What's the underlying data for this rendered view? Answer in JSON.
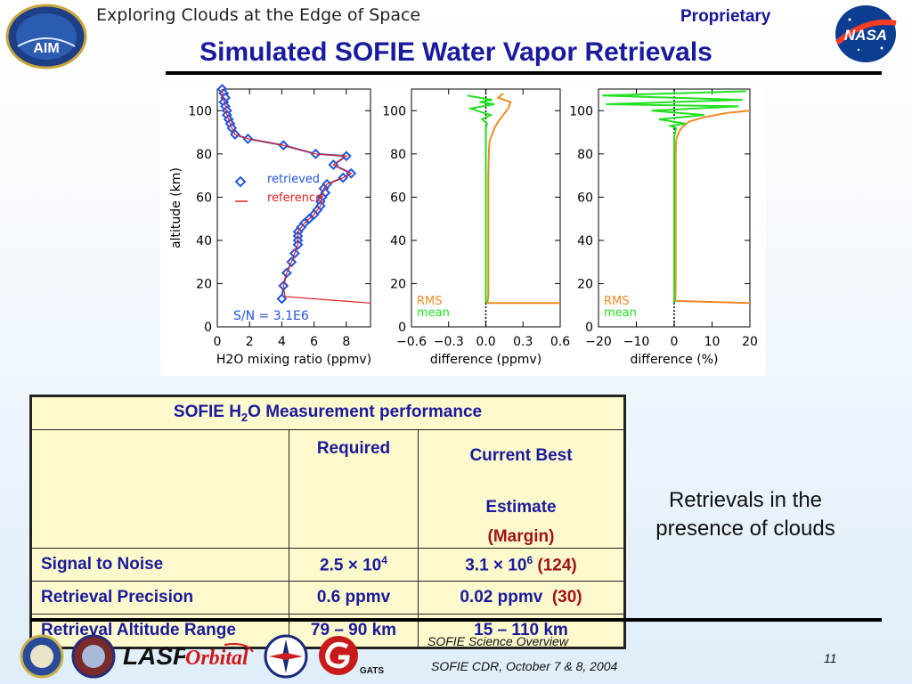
{
  "header": {
    "tagline": "Exploring Clouds at the Edge of Space",
    "proprietary": "Proprietary",
    "aim_logo_text": "AIM",
    "nasa_logo_text": "NASA"
  },
  "title": "Simulated SOFIE Water Vapor Retrievals",
  "chart_data": [
    {
      "type": "line",
      "ylabel": "altitude (km)",
      "xlabel": "H2O mixing ratio (ppmv)",
      "xlim": [
        0,
        9.5
      ],
      "ylim": [
        0,
        110
      ],
      "xticks": [
        "0",
        "2",
        "4",
        "6",
        "8"
      ],
      "yticks": [
        "0",
        "20",
        "40",
        "60",
        "80",
        "100"
      ],
      "legend": "top-left",
      "legend_entries": [
        "retrieved",
        "reference"
      ],
      "annotation": "S/N = 3.1E6",
      "series": [
        {
          "name": "retrieved",
          "marker": "diamond",
          "x": [
            0.3,
            0.4,
            0.5,
            0.4,
            0.5,
            0.6,
            0.6,
            0.7,
            0.8,
            0.9,
            1.1,
            1.9,
            4.1,
            6.1,
            8.0,
            7.2,
            8.3,
            7.8,
            6.8,
            6.6,
            6.7,
            6.5,
            6.4,
            6.4,
            6.2,
            6.0,
            5.7,
            5.4,
            5.2,
            5.0,
            5.0,
            5.0,
            5.0,
            4.8,
            4.6,
            4.3,
            4.1,
            4.0
          ],
          "y": [
            110,
            108,
            106,
            104,
            102,
            100,
            98,
            96,
            94,
            92,
            89,
            87,
            84,
            80,
            79,
            75,
            71,
            69,
            66,
            64,
            62,
            60,
            58,
            56,
            54,
            52,
            50,
            48,
            46,
            44,
            42,
            40,
            38,
            34,
            30,
            25,
            19,
            13
          ]
        },
        {
          "name": "reference",
          "x": [
            0.3,
            0.4,
            0.5,
            0.6,
            0.7,
            0.9,
            1.1,
            1.9,
            4.1,
            6.1,
            8.0,
            7.2,
            8.3,
            7.8,
            6.8,
            6.6,
            6.5,
            6.4,
            6.2,
            6.0,
            5.4,
            5.0,
            5.0,
            4.8,
            4.6,
            4.3,
            4.1,
            4.2,
            9.5
          ],
          "y": [
            110,
            105,
            102,
            98,
            96,
            92,
            89,
            87,
            84,
            80,
            79,
            75,
            71,
            69,
            66,
            64,
            60,
            56,
            54,
            52,
            48,
            44,
            38,
            34,
            30,
            25,
            19,
            14,
            11
          ]
        }
      ]
    },
    {
      "type": "line",
      "xlabel": "difference (ppmv)",
      "xlim": [
        -0.6,
        0.6
      ],
      "ylim": [
        0,
        110
      ],
      "xticks": [
        "−0.6",
        "−0.3",
        "0.0",
        "0.3",
        "0.6"
      ],
      "yticks": [
        "0",
        "20",
        "40",
        "60",
        "80",
        "100"
      ],
      "legend": "bottom-left",
      "legend_entries": [
        "RMS",
        "mean"
      ],
      "series": [
        {
          "name": "RMS",
          "x": [
            0.14,
            0.1,
            0.2,
            0.18,
            0.14,
            0.1,
            0.07,
            0.05,
            0.03,
            0.025,
            0.02,
            0.02,
            0.02,
            0.02,
            0.015,
            0.015,
            0.6
          ],
          "y": [
            108,
            106,
            104,
            101,
            98,
            95,
            92,
            89,
            86,
            82,
            70,
            50,
            30,
            15,
            12,
            11,
            11
          ]
        },
        {
          "name": "mean",
          "x": [
            -0.15,
            0.05,
            -0.05,
            0.07,
            -0.12,
            -0.02,
            0.04,
            -0.03,
            0.01,
            0.0,
            0.0,
            0.0,
            0.0
          ],
          "y": [
            107,
            105,
            104,
            103,
            101,
            99,
            98,
            96,
            94,
            92,
            70,
            30,
            11
          ]
        }
      ]
    },
    {
      "type": "line",
      "xlabel": "difference (%)",
      "xlim": [
        -20,
        20
      ],
      "ylim": [
        0,
        110
      ],
      "xticks": [
        "−20",
        "−10",
        "0",
        "10",
        "20"
      ],
      "yticks": [
        "0",
        "20",
        "40",
        "60",
        "80",
        "100"
      ],
      "legend": "bottom-left",
      "legend_entries": [
        "RMS",
        "mean"
      ],
      "series": [
        {
          "name": "RMS",
          "x": [
            20,
            14,
            8,
            4,
            2.5,
            1.5,
            1,
            0.6,
            0.5,
            0.4,
            0.4,
            0.4,
            0.4,
            0.3,
            20
          ],
          "y": [
            100,
            99,
            97,
            95,
            93,
            91,
            89,
            87,
            85,
            80,
            60,
            40,
            20,
            12,
            11
          ]
        },
        {
          "name": "mean",
          "x": [
            19,
            -19,
            18,
            -18,
            17,
            -6,
            8,
            -4,
            3,
            -1,
            0.5,
            0,
            0,
            0
          ],
          "y": [
            109,
            107,
            105,
            103,
            102,
            100,
            98,
            96,
            94,
            93,
            92,
            88,
            40,
            11
          ]
        }
      ]
    }
  ],
  "table": {
    "title_pre": "SOFIE H",
    "title_sub": "2",
    "title_post": "O Measurement performance",
    "col_required": "Required",
    "col_best_l1": "Current Best",
    "col_best_l2": "Estimate",
    "col_best_margin": "(Margin)",
    "rows": [
      {
        "label": "Signal to Noise",
        "req_base": "2.5 × 10",
        "req_exp": "4",
        "best_base": "3.1 × 10",
        "best_exp": "6",
        "margin": "(124)"
      },
      {
        "label": "Retrieval Precision",
        "req": "0.6 ppmv",
        "best": "0.02 ppmv",
        "margin": "(30)"
      },
      {
        "label": "Retrieval Altitude Range",
        "req": "79 – 90 km",
        "best": "15 – 110 km"
      }
    ]
  },
  "side_note": "Retrievals in the presence of clouds",
  "footer": {
    "line1": "SOFIE Science Overview",
    "line2": "SOFIE CDR, October 7 & 8, 2004",
    "page": "11",
    "logos": [
      "seal-logo-1",
      "seal-logo-2",
      "lasp-logo",
      "orbital-logo",
      "seal-logo-3",
      "gats-logo"
    ],
    "lasp_text": "LASP",
    "orbital_text": "Orbital",
    "gats_text": "GATS"
  },
  "colors": {
    "title": "#1a1a9c",
    "table_bg": "#fcf9cc",
    "margin_text": "#a01414",
    "retrieved": "#2255dd",
    "reference": "#e02020",
    "rms": "#f08a24",
    "mean": "#22e022"
  }
}
